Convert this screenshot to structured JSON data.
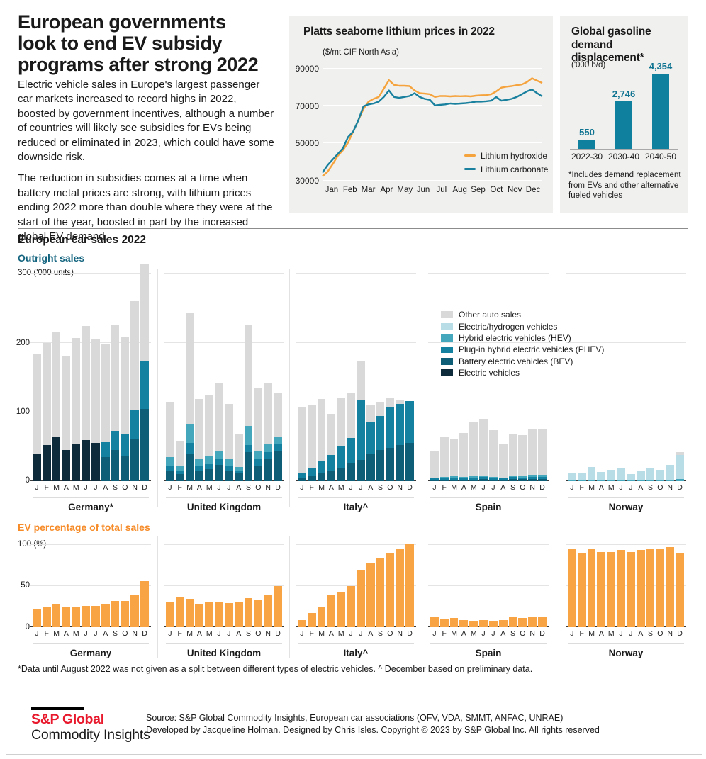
{
  "article": {
    "title_lines": [
      "European governments",
      "look to end EV subsidy",
      "programs after strong 2022"
    ],
    "paragraphs": [
      "Electric vehicle sales in Europe's largest passenger car markets increased to record highs in 2022, boosted by government incentives, although a number of countries will likely see subsidies for EVs being reduced or eliminated in 2023, which could have some downside risk.",
      "The reduction in subsidies comes at a time when battery metal prices are strong, with lithium prices ending 2022 more than double where they were at the start of the year, boosted in part by the increased global EV demand."
    ]
  },
  "chart_data": [
    {
      "id": "lithium-prices",
      "type": "line",
      "title": "Platts seaborne lithium prices in 2022",
      "unit_label": "($/mt CIF North Asia)",
      "x_labels": [
        "Jan",
        "Feb",
        "Mar",
        "Apr",
        "May",
        "Jun",
        "Jul",
        "Aug",
        "Sep",
        "Oct",
        "Nov",
        "Dec"
      ],
      "y_ticks": [
        "90000",
        "70000",
        "50000",
        "30000"
      ],
      "ylim": [
        30000,
        92000
      ],
      "grid": true,
      "legend_position": "inside-right",
      "series": [
        {
          "name": "Lithium hydroxide",
          "color": "#f5a33c",
          "values_kusd": [
            32,
            34.5,
            38.5,
            43,
            46,
            50,
            56,
            62,
            68,
            72,
            73.5,
            74.5,
            79,
            83.5,
            81,
            80.5,
            80.5,
            80.3,
            78,
            76.5,
            76.3,
            76,
            74.5,
            75,
            75,
            74.8,
            75,
            74.9,
            75,
            74.8,
            75.2,
            75.4,
            75.5,
            76,
            77.5,
            79.5,
            80,
            80.3,
            80.8,
            81.2,
            82.5,
            84.5,
            83.2,
            82
          ]
        },
        {
          "name": "Lithium carbonate",
          "color": "#19809e",
          "values_kusd": [
            34,
            38,
            41,
            44,
            47,
            53,
            56,
            62,
            69.5,
            70.5,
            71,
            72,
            74.5,
            78,
            74.5,
            74,
            74.5,
            75,
            76.5,
            74.5,
            73.5,
            73,
            70,
            70.3,
            70.5,
            71,
            70.8,
            71,
            71.2,
            71.5,
            72,
            72,
            72.2,
            72.5,
            74.5,
            72.5,
            73,
            73.5,
            74.5,
            76,
            77.5,
            78.5,
            76.5,
            74.8
          ]
        }
      ]
    },
    {
      "id": "gasoline-displacement",
      "type": "bar",
      "title": "Global gasoline demand displacement*",
      "unit_label": "('000 b/d)",
      "categories": [
        "2022-30",
        "2030-40",
        "2040-50"
      ],
      "values": [
        550,
        2746,
        4354
      ],
      "value_labels": [
        "550",
        "2,746",
        "4,354"
      ],
      "bar_color": "#10809f",
      "label_color": "#0e7390",
      "ylim": [
        0,
        4500
      ],
      "footnote": "*Includes demand replacement from EVs and other alternative fueled vehicles"
    },
    {
      "id": "european-car-sales",
      "type": "stacked-bar",
      "section_title": "European car sales 2022",
      "months": [
        "J",
        "F",
        "M",
        "A",
        "M",
        "J",
        "J",
        "A",
        "S",
        "O",
        "N",
        "D"
      ],
      "outright": {
        "title": "Outright sales",
        "unit_label": "300 ('000 units)",
        "y_ticks": [
          "200",
          "100",
          "0"
        ],
        "ylim": [
          0,
          300
        ],
        "unit_note": "thousand units",
        "stack_order": [
          "ev",
          "bev",
          "phev",
          "hev",
          "ehv",
          "other"
        ],
        "colors": {
          "other": "#d9d9d9",
          "ehv": "#b9dde7",
          "hev": "#45a7bc",
          "phev": "#1581a0",
          "bev": "#0f5e77",
          "ev": "#0d2b3a"
        },
        "legend": [
          {
            "key": "other",
            "label": "Other auto sales"
          },
          {
            "key": "ehv",
            "label": "Electric/hydrogen vehicles"
          },
          {
            "key": "hev",
            "label": "Hybrid electric vehicles (HEV)"
          },
          {
            "key": "phev",
            "label": "Plug-in hybrid electric vehicles (PHEV)"
          },
          {
            "key": "bev",
            "label": "Battery electric vehicles (BEV)"
          },
          {
            "key": "ev",
            "label": "Electric vehicles"
          }
        ],
        "countries": [
          {
            "label": "Germany*",
            "bars": [
              {
                "ev": 40,
                "other": 144
              },
              {
                "ev": 52,
                "other": 148
              },
              {
                "ev": 63,
                "other": 152
              },
              {
                "ev": 45,
                "other": 135
              },
              {
                "ev": 54,
                "other": 153
              },
              {
                "ev": 59,
                "other": 165
              },
              {
                "ev": 55,
                "other": 151
              },
              {
                "bev": 35,
                "phev": 22,
                "other": 142
              },
              {
                "bev": 45,
                "phev": 28,
                "other": 152
              },
              {
                "bev": 37,
                "phev": 31,
                "other": 140
              },
              {
                "bev": 60,
                "phev": 43,
                "other": 157
              },
              {
                "bev": 104,
                "phev": 70,
                "other": 140
              }
            ]
          },
          {
            "label": "United Kingdom",
            "bars": [
              {
                "bev": 15,
                "phev": 8,
                "hev": 12,
                "other": 80
              },
              {
                "bev": 10,
                "phev": 5,
                "hev": 7,
                "other": 36
              },
              {
                "bev": 40,
                "phev": 15,
                "hev": 28,
                "other": 160
              },
              {
                "bev": 15,
                "phev": 8,
                "hev": 10,
                "other": 86
              },
              {
                "bev": 17,
                "phev": 8,
                "hev": 12,
                "other": 87
              },
              {
                "bev": 24,
                "phev": 8,
                "hev": 12,
                "other": 97
              },
              {
                "bev": 14,
                "phev": 8,
                "hev": 11,
                "other": 79
              },
              {
                "bev": 11,
                "phev": 4,
                "hev": 6,
                "other": 48
              },
              {
                "bev": 42,
                "phev": 10,
                "hev": 28,
                "other": 145
              },
              {
                "bev": 22,
                "phev": 10,
                "hev": 12,
                "other": 90
              },
              {
                "bev": 32,
                "phev": 10,
                "hev": 12,
                "other": 88
              },
              {
                "bev": 43,
                "phev": 10,
                "hev": 12,
                "other": 63
              }
            ]
          },
          {
            "label": "Italy^",
            "bars": [
              {
                "bev": 5,
                "phev": 6,
                "other": 96
              },
              {
                "bev": 7,
                "phev": 12,
                "other": 91
              },
              {
                "bev": 11,
                "phev": 18,
                "other": 90
              },
              {
                "bev": 14,
                "phev": 24,
                "other": 59
              },
              {
                "bev": 19,
                "phev": 31,
                "other": 71
              },
              {
                "bev": 26,
                "phev": 36,
                "other": 66
              },
              {
                "bev": 31,
                "phev": 87,
                "other": 56
              },
              {
                "bev": 40,
                "phev": 45,
                "other": 25
              },
              {
                "bev": 45,
                "phev": 49,
                "other": 21
              },
              {
                "bev": 48,
                "phev": 60,
                "other": 12
              },
              {
                "bev": 52,
                "phev": 60,
                "other": 6
              },
              {
                "bev": 55,
                "phev": 61,
                "other": 0
              }
            ]
          },
          {
            "label": "Spain",
            "bars": [
              {
                "bev": 2,
                "phev": 2,
                "hev": 1,
                "other": 38
              },
              {
                "bev": 2,
                "phev": 2,
                "hev": 2,
                "other": 57
              },
              {
                "bev": 2,
                "phev": 3,
                "hev": 2,
                "other": 53
              },
              {
                "bev": 2,
                "phev": 2,
                "hev": 2,
                "other": 64
              },
              {
                "bev": 2,
                "phev": 3,
                "hev": 2,
                "other": 78
              },
              {
                "bev": 3,
                "phev": 3,
                "hev": 2,
                "other": 82
              },
              {
                "bev": 2,
                "phev": 2,
                "hev": 2,
                "other": 68
              },
              {
                "bev": 2,
                "phev": 2,
                "hev": 1,
                "other": 48
              },
              {
                "bev": 3,
                "phev": 3,
                "hev": 2,
                "other": 60
              },
              {
                "bev": 3,
                "phev": 2,
                "hev": 2,
                "other": 60
              },
              {
                "bev": 3,
                "phev": 3,
                "hev": 3,
                "other": 66
              },
              {
                "bev": 3,
                "phev": 3,
                "hev": 3,
                "other": 66
              }
            ]
          },
          {
            "label": "Norway",
            "bars": [
              {
                "hev": 2,
                "ehv": 9,
                "other": 0
              },
              {
                "hev": 2,
                "ehv": 10,
                "other": 0
              },
              {
                "hev": 2,
                "ehv": 18,
                "other": 0
              },
              {
                "hev": 2,
                "ehv": 11,
                "other": 0
              },
              {
                "hev": 2,
                "ehv": 14,
                "other": 0
              },
              {
                "hev": 2,
                "ehv": 17,
                "other": 0
              },
              {
                "hev": 1.5,
                "ehv": 8.5,
                "other": 0
              },
              {
                "hev": 2,
                "ehv": 13,
                "other": 0
              },
              {
                "hev": 2,
                "ehv": 16,
                "other": 0
              },
              {
                "hev": 2,
                "ehv": 14,
                "other": 0
              },
              {
                "hev": 2,
                "ehv": 22,
                "other": 0
              },
              {
                "hev": 3,
                "ehv": 35,
                "other": 4
              }
            ]
          }
        ]
      },
      "ev_share": {
        "title": "EV percentage of total sales",
        "unit_label": "100 (%)",
        "y_ticks": [
          "50",
          "0"
        ],
        "ylim": [
          0,
          100
        ],
        "bar_color": "#f8a445",
        "countries": [
          {
            "label": "Germany",
            "values": [
              21,
              25,
              28,
              24,
              25,
              26,
              26,
              28,
              32,
              32,
              39,
              56
            ]
          },
          {
            "label": "United Kingdom",
            "values": [
              31,
              37,
              34,
              28,
              30,
              31,
              29,
              31,
              35,
              33,
              39,
              50
            ]
          },
          {
            "label": "Italy^",
            "values": [
              9,
              17,
              24,
              39,
              42,
              50,
              68,
              78,
              83,
              90,
              95,
              100
            ]
          },
          {
            "label": "Spain",
            "values": [
              12,
              10,
              11,
              9,
              8,
              9,
              8,
              9,
              12,
              11,
              12,
              12
            ]
          },
          {
            "label": "Norway",
            "values": [
              95,
              90,
              95,
              91,
              91,
              93,
              91,
              93,
              94,
              94,
              97,
              90
            ]
          }
        ]
      }
    }
  ],
  "footnote": "*Data until August 2022 was not given as a split between different types of electric vehicles. ^ December based on preliminary data.",
  "footer": {
    "brand_line1": "S&P Global",
    "brand_line2": "Commodity Insights",
    "brand_color": "#e8192c",
    "source_line1": "Source: S&P Global Commodity Insights, European car associations (OFV, VDA, SMMT, ANFAC, UNRAE)",
    "source_line2": "Developed by Jacqueline Holman. Designed by Chris Isles. Copyright © 2023 by S&P Global Inc. All rights reserved"
  }
}
